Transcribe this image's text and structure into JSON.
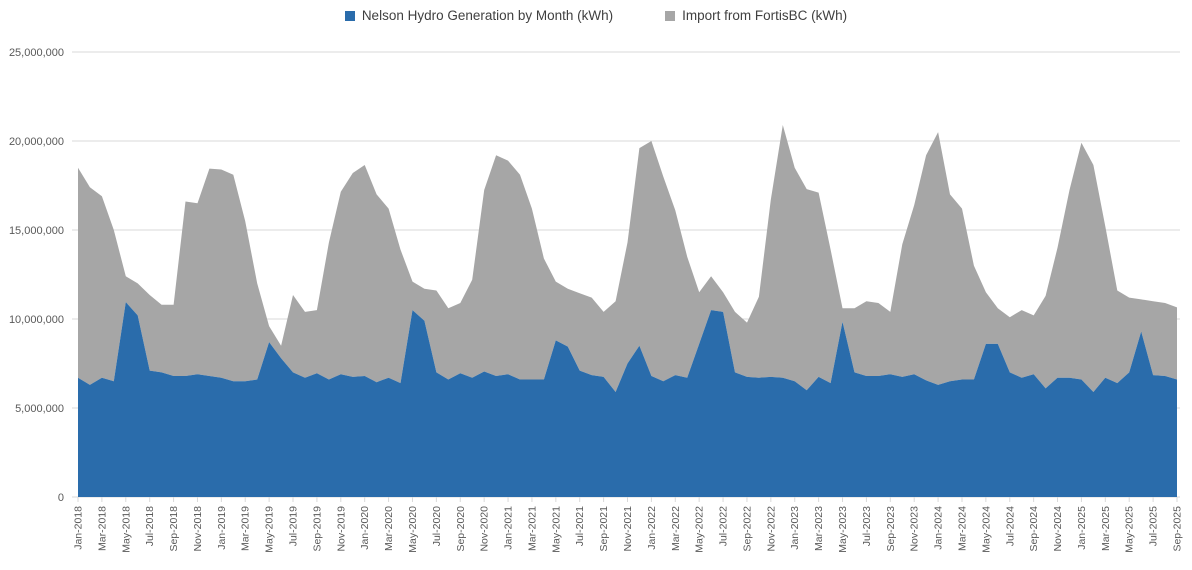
{
  "legend": {
    "series1_label": "Nelson Hydro Generation by Month (kWh)",
    "series2_label": "Import from FortisBC (kWh)"
  },
  "colors": {
    "generation_blue": "#2a6cab",
    "import_gray": "#a6a6a6",
    "gridline": "#d9d9d9",
    "axis_text": "#595959",
    "legend_text": "#404040"
  },
  "chart_data": {
    "type": "area",
    "stacked": true,
    "grid": true,
    "legend_position": "top",
    "ylim": [
      0,
      25000000
    ],
    "tick_every": 2,
    "y_ticks": {
      "values": [
        0,
        5000000,
        10000000,
        15000000,
        20000000,
        25000000
      ],
      "labels": [
        "0",
        "5,000,000",
        "10,000,000",
        "15,000,000",
        "20,000,000",
        "25,000,000"
      ]
    },
    "x": [
      "Jan-2018",
      "Feb-2018",
      "Mar-2018",
      "Apr-2018",
      "May-2018",
      "Jun-2018",
      "Jul-2018",
      "Aug-2018",
      "Sep-2018",
      "Oct-2018",
      "Nov-2018",
      "Dec-2018",
      "Jan-2019",
      "Feb-2019",
      "Mar-2019",
      "Apr-2019",
      "May-2019",
      "Jun-2019",
      "Jul-2019",
      "Aug-2019",
      "Sep-2019",
      "Oct-2019",
      "Nov-2019",
      "Dec-2019",
      "Jan-2020",
      "Feb-2020",
      "Mar-2020",
      "Apr-2020",
      "May-2020",
      "Jun-2020",
      "Jul-2020",
      "Aug-2020",
      "Sep-2020",
      "Oct-2020",
      "Nov-2020",
      "Dec-2020",
      "Jan-2021",
      "Feb-2021",
      "Mar-2021",
      "Apr-2021",
      "May-2021",
      "Jun-2021",
      "Jul-2021",
      "Aug-2021",
      "Sep-2021",
      "Oct-2021",
      "Nov-2021",
      "Dec-2021",
      "Jan-2022",
      "Feb-2022",
      "Mar-2022",
      "Apr-2022",
      "May-2022",
      "Jun-2022",
      "Jul-2022",
      "Aug-2022",
      "Sep-2022",
      "Oct-2022",
      "Nov-2022",
      "Dec-2022",
      "Jan-2023",
      "Feb-2023",
      "Mar-2023",
      "Apr-2023",
      "May-2023",
      "Jun-2023",
      "Jul-2023",
      "Aug-2023",
      "Sep-2023",
      "Oct-2023",
      "Nov-2023",
      "Dec-2023",
      "Jan-2024",
      "Feb-2024",
      "Mar-2024",
      "Apr-2024",
      "May-2024",
      "Jun-2024",
      "Jul-2024",
      "Aug-2024",
      "Sep-2024",
      "Oct-2024",
      "Nov-2024",
      "Dec-2024",
      "Jan-2025",
      "Feb-2025",
      "Mar-2025",
      "Apr-2025",
      "May-2025",
      "Jun-2025",
      "Jul-2025",
      "Aug-2025",
      "Sep-2025"
    ],
    "series": [
      {
        "name": "Nelson Hydro Generation by Month (kWh)",
        "color": "#2a6cab",
        "values": [
          6700000,
          6300000,
          6700000,
          6500000,
          10950000,
          10200000,
          7100000,
          7000000,
          6800000,
          6800000,
          6900000,
          6800000,
          6700000,
          6500000,
          6500000,
          6600000,
          8700000,
          7800000,
          7000000,
          6700000,
          6950000,
          6600000,
          6900000,
          6750000,
          6800000,
          6450000,
          6700000,
          6400000,
          10500000,
          9900000,
          7000000,
          6600000,
          6950000,
          6700000,
          7050000,
          6800000,
          6900000,
          6600000,
          6600000,
          6600000,
          8800000,
          8450000,
          7100000,
          6850000,
          6750000,
          5900000,
          7500000,
          8500000,
          6800000,
          6500000,
          6850000,
          6700000,
          8600000,
          10500000,
          10400000,
          7000000,
          6750000,
          6700000,
          6750000,
          6700000,
          6500000,
          6000000,
          6750000,
          6400000,
          9850000,
          7000000,
          6800000,
          6800000,
          6900000,
          6750000,
          6900000,
          6550000,
          6300000,
          6500000,
          6600000,
          6600000,
          8600000,
          8600000,
          7000000,
          6700000,
          6900000,
          6100000,
          6700000,
          6700000,
          6600000,
          5900000,
          6700000,
          6400000,
          7000000,
          9300000,
          6850000,
          6800000,
          6600000
        ]
      },
      {
        "name": "Import from FortisBC (kWh)",
        "color": "#a6a6a6",
        "values": [
          11800000,
          11100000,
          10200000,
          8500000,
          1450000,
          1800000,
          4250000,
          3800000,
          4000000,
          9800000,
          9600000,
          11650000,
          11700000,
          11600000,
          9000000,
          5400000,
          900000,
          700000,
          4350000,
          3700000,
          3550000,
          7700000,
          10250000,
          11450000,
          11850000,
          10550000,
          9500000,
          7500000,
          1600000,
          1800000,
          4600000,
          4000000,
          3950000,
          5500000,
          10200000,
          12400000,
          12000000,
          11500000,
          9600000,
          6800000,
          3300000,
          3250000,
          4350000,
          4350000,
          3650000,
          5100000,
          6800000,
          11100000,
          13200000,
          11500000,
          9250000,
          6800000,
          2900000,
          1900000,
          1100000,
          3400000,
          3050000,
          4550000,
          9950000,
          14200000,
          12000000,
          11300000,
          10350000,
          7500000,
          750000,
          3600000,
          4200000,
          4100000,
          3500000,
          7450000,
          9500000,
          12650000,
          14200000,
          10500000,
          9600000,
          6400000,
          2900000,
          2000000,
          3100000,
          3800000,
          3300000,
          5200000,
          7300000,
          10550000,
          13300000,
          12750000,
          8500000,
          5200000,
          4200000,
          1800000,
          4150000,
          4100000,
          4050000
        ]
      }
    ]
  }
}
